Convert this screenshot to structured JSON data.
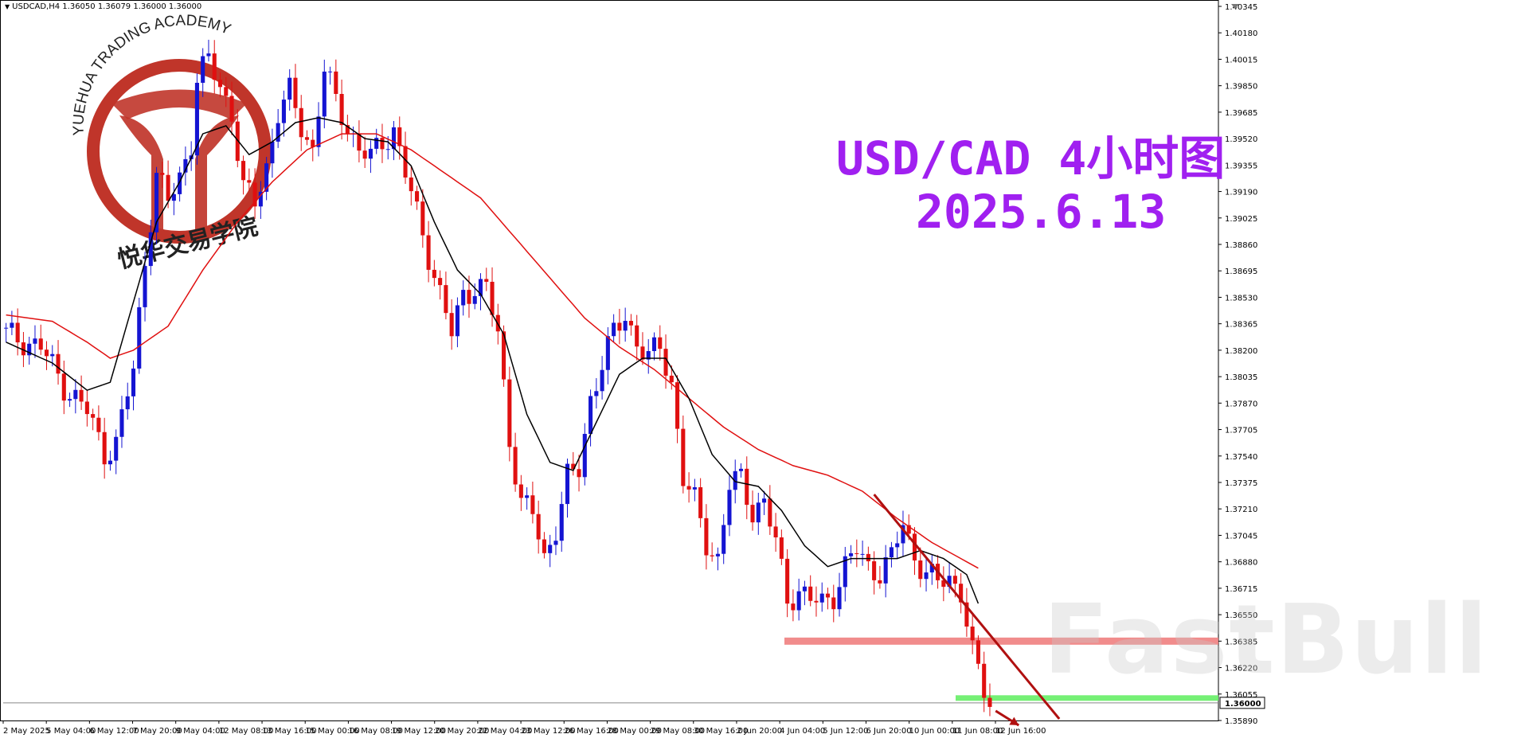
{
  "header": {
    "symbol_info": "USDCAD,H4  1.36050 1.36079 1.36000 1.36000"
  },
  "annotations": {
    "title": "USD/CAD 4小时图",
    "date": "2025.6.13",
    "logo_top_text": "YUEHUA TRADING ACADEMY",
    "logo_bottom_text": "悦华交易学院",
    "watermark": "FastBull"
  },
  "colors": {
    "bull": "#1414d2",
    "bear": "#e01010",
    "ma_fast": "#000000",
    "ma_slow": "#e01010",
    "support_zone": "#f08080",
    "target_zone": "#66ee66",
    "trendline": "#b01010",
    "title": "#a020f0"
  },
  "chart_data": {
    "type": "candlestick",
    "symbol": "USDCAD",
    "timeframe": "H4",
    "ylim": [
      1.3589,
      1.40345
    ],
    "y_ticks": [
      "1.40345",
      "1.40180",
      "1.40015",
      "1.39850",
      "1.39685",
      "1.39520",
      "1.39355",
      "1.39190",
      "1.39025",
      "1.38860",
      "1.38695",
      "1.38530",
      "1.38365",
      "1.38200",
      "1.38035",
      "1.37870",
      "1.37705",
      "1.37540",
      "1.37375",
      "1.37210",
      "1.37045",
      "1.36880",
      "1.36715",
      "1.36550",
      "1.36385",
      "1.36220",
      "1.36055",
      "1.35890"
    ],
    "current_price": "1.36000",
    "x_ticks": [
      "2 May 2025",
      "5 May 04:00",
      "6 May 12:00",
      "7 May 20:00",
      "9 May 04:00",
      "12 May 08:00",
      "13 May 16:00",
      "15 May 00:00",
      "16 May 08:00",
      "19 May 12:00",
      "20 May 20:00",
      "22 May 04:00",
      "23 May 12:00",
      "26 May 16:00",
      "28 May 00:00",
      "29 May 08:00",
      "30 May 16:00",
      "2 Jun 20:00",
      "4 Jun 04:00",
      "5 Jun 12:00",
      "6 Jun 20:00",
      "10 Jun 00:00",
      "11 Jun 08:00",
      "12 Jun 16:00"
    ],
    "close_path": [
      [
        0,
        1.383
      ],
      [
        6,
        1.3822
      ],
      [
        10,
        1.3798
      ],
      [
        14,
        1.3782
      ],
      [
        17,
        1.3756
      ],
      [
        19,
        1.3762
      ],
      [
        22,
        1.3808
      ],
      [
        24,
        1.3876
      ],
      [
        26,
        1.393
      ],
      [
        28,
        1.3912
      ],
      [
        30,
        1.3928
      ],
      [
        32,
        1.395
      ],
      [
        33,
        1.399
      ],
      [
        35,
        1.4
      ],
      [
        37,
        1.3985
      ],
      [
        39,
        1.3968
      ],
      [
        41,
        1.392
      ],
      [
        43,
        1.3912
      ],
      [
        45,
        1.3935
      ],
      [
        47,
        1.3968
      ],
      [
        49,
        1.398
      ],
      [
        51,
        1.396
      ],
      [
        53,
        1.3945
      ],
      [
        55,
        1.3995
      ],
      [
        57,
        1.3975
      ],
      [
        59,
        1.396
      ],
      [
        61,
        1.3945
      ],
      [
        63,
        1.394
      ],
      [
        65,
        1.395
      ],
      [
        67,
        1.3958
      ],
      [
        69,
        1.393
      ],
      [
        71,
        1.3905
      ],
      [
        73,
        1.388
      ],
      [
        75,
        1.3855
      ],
      [
        77,
        1.383
      ],
      [
        79,
        1.3855
      ],
      [
        81,
        1.386
      ],
      [
        83,
        1.3858
      ],
      [
        85,
        1.383
      ],
      [
        87,
        1.3765
      ],
      [
        89,
        1.3725
      ],
      [
        91,
        1.3718
      ],
      [
        93,
        1.369
      ],
      [
        95,
        1.371
      ],
      [
        97,
        1.374
      ],
      [
        99,
        1.3745
      ],
      [
        101,
        1.379
      ],
      [
        103,
        1.3812
      ],
      [
        105,
        1.383
      ],
      [
        107,
        1.3842
      ],
      [
        109,
        1.3825
      ],
      [
        111,
        1.3815
      ],
      [
        113,
        1.3822
      ],
      [
        115,
        1.38
      ],
      [
        117,
        1.374
      ],
      [
        119,
        1.3725
      ],
      [
        121,
        1.37
      ],
      [
        123,
        1.369
      ],
      [
        125,
        1.3735
      ],
      [
        127,
        1.374
      ],
      [
        129,
        1.372
      ],
      [
        131,
        1.3725
      ],
      [
        133,
        1.37
      ],
      [
        135,
        1.3665
      ],
      [
        137,
        1.367
      ],
      [
        139,
        1.3664
      ],
      [
        141,
        1.3662
      ],
      [
        143,
        1.3668
      ],
      [
        145,
        1.3685
      ],
      [
        147,
        1.3695
      ],
      [
        149,
        1.3685
      ],
      [
        151,
        1.3682
      ],
      [
        153,
        1.369
      ],
      [
        155,
        1.3712
      ],
      [
        157,
        1.3692
      ],
      [
        159,
        1.368
      ],
      [
        161,
        1.3675
      ],
      [
        163,
        1.3678
      ],
      [
        165,
        1.367
      ],
      [
        167,
        1.363
      ],
      [
        169,
        1.3608
      ],
      [
        170,
        1.36
      ]
    ],
    "ma_fast_path": [
      [
        0,
        1.3825
      ],
      [
        8,
        1.3812
      ],
      [
        14,
        1.3795
      ],
      [
        18,
        1.38
      ],
      [
        22,
        1.385
      ],
      [
        26,
        1.39
      ],
      [
        30,
        1.3925
      ],
      [
        34,
        1.3955
      ],
      [
        38,
        1.396
      ],
      [
        42,
        1.3942
      ],
      [
        46,
        1.395
      ],
      [
        50,
        1.3962
      ],
      [
        54,
        1.3965
      ],
      [
        58,
        1.3962
      ],
      [
        62,
        1.3952
      ],
      [
        66,
        1.395
      ],
      [
        70,
        1.3935
      ],
      [
        74,
        1.39
      ],
      [
        78,
        1.387
      ],
      [
        82,
        1.3855
      ],
      [
        86,
        1.383
      ],
      [
        90,
        1.378
      ],
      [
        94,
        1.375
      ],
      [
        98,
        1.3745
      ],
      [
        102,
        1.3775
      ],
      [
        106,
        1.3805
      ],
      [
        110,
        1.3815
      ],
      [
        114,
        1.3815
      ],
      [
        118,
        1.379
      ],
      [
        122,
        1.3755
      ],
      [
        126,
        1.3738
      ],
      [
        130,
        1.3735
      ],
      [
        134,
        1.372
      ],
      [
        138,
        1.3698
      ],
      [
        142,
        1.3685
      ],
      [
        146,
        1.369
      ],
      [
        150,
        1.369
      ],
      [
        154,
        1.369
      ],
      [
        158,
        1.3695
      ],
      [
        162,
        1.369
      ],
      [
        166,
        1.368
      ],
      [
        168,
        1.3662
      ]
    ],
    "ma_slow_path": [
      [
        0,
        1.3842
      ],
      [
        8,
        1.3838
      ],
      [
        14,
        1.3825
      ],
      [
        18,
        1.3815
      ],
      [
        22,
        1.382
      ],
      [
        28,
        1.3835
      ],
      [
        34,
        1.387
      ],
      [
        40,
        1.39
      ],
      [
        46,
        1.3925
      ],
      [
        52,
        1.3945
      ],
      [
        58,
        1.3955
      ],
      [
        64,
        1.3955
      ],
      [
        70,
        1.3945
      ],
      [
        76,
        1.393
      ],
      [
        82,
        1.3915
      ],
      [
        88,
        1.389
      ],
      [
        94,
        1.3865
      ],
      [
        100,
        1.384
      ],
      [
        106,
        1.3822
      ],
      [
        112,
        1.3808
      ],
      [
        118,
        1.379
      ],
      [
        124,
        1.3772
      ],
      [
        130,
        1.3758
      ],
      [
        136,
        1.3748
      ],
      [
        142,
        1.3742
      ],
      [
        148,
        1.3732
      ],
      [
        154,
        1.3715
      ],
      [
        160,
        1.37
      ],
      [
        166,
        1.3688
      ],
      [
        168,
        1.3684
      ]
    ],
    "zones": [
      {
        "name": "support",
        "price": 1.36385,
        "from_index": 136,
        "to_index": 210
      },
      {
        "name": "target",
        "price": 1.3603,
        "from_index": 168,
        "to_index": 210
      }
    ],
    "trendline": {
      "from": [
        150,
        1.373
      ],
      "to": [
        182,
        1.359
      ]
    },
    "arrow": {
      "from": [
        171,
        1.3595
      ],
      "to": [
        175,
        1.3586
      ]
    },
    "bars_total": 210,
    "legend": "none",
    "grid": false
  }
}
